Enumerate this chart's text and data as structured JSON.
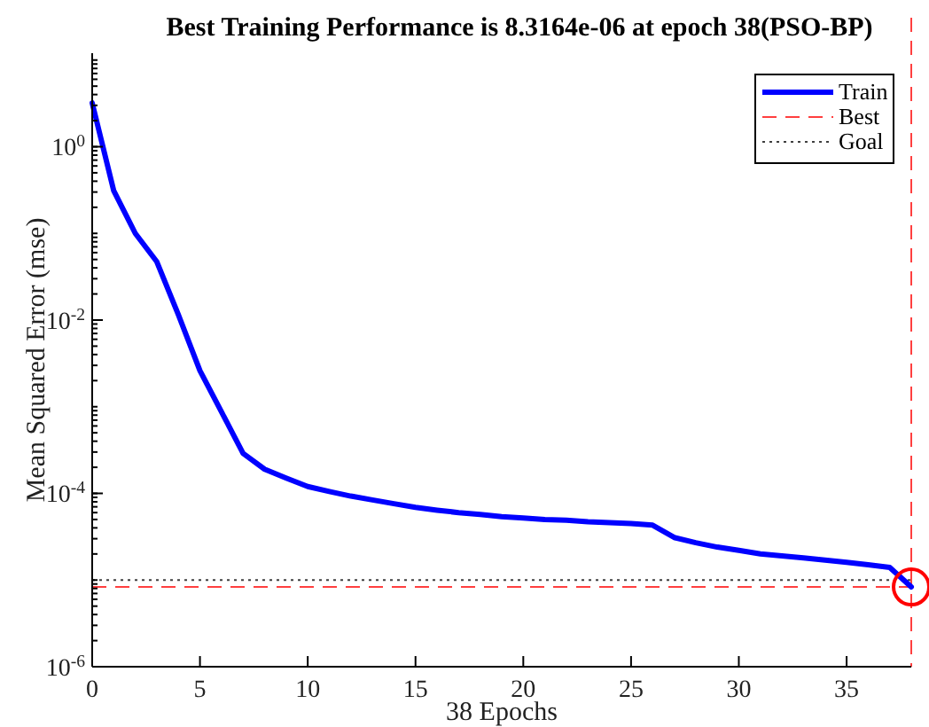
{
  "chart_data": {
    "type": "line",
    "title": "Best Training Performance is 8.3164e-06 at epoch 38(PSO-BP)",
    "xlabel": "38 Epochs",
    "ylabel": "Mean Squared Error  (mse)",
    "x": [
      0,
      1,
      2,
      3,
      4,
      5,
      6,
      7,
      8,
      9,
      10,
      11,
      12,
      13,
      14,
      15,
      16,
      17,
      18,
      19,
      20,
      21,
      22,
      23,
      24,
      25,
      26,
      27,
      28,
      29,
      30,
      31,
      32,
      33,
      34,
      35,
      36,
      37,
      38
    ],
    "series": [
      {
        "name": "Train",
        "color": "#0000ff",
        "values": [
          3.2,
          0.31,
          0.1,
          0.047,
          0.0115,
          0.0026,
          0.00087,
          0.00029,
          0.00019,
          0.00015,
          0.00012,
          0.000105,
          9.3e-05,
          8.4e-05,
          7.6e-05,
          6.9e-05,
          6.4e-05,
          6e-05,
          5.7e-05,
          5.4e-05,
          5.2e-05,
          5e-05,
          4.9e-05,
          4.7e-05,
          4.6e-05,
          4.5e-05,
          4.3e-05,
          3.1e-05,
          2.7e-05,
          2.4e-05,
          2.2e-05,
          2e-05,
          1.9e-05,
          1.8e-05,
          1.7e-05,
          1.6e-05,
          1.5e-05,
          1.4e-05,
          8.3164e-06
        ]
      }
    ],
    "xlim": [
      0,
      38
    ],
    "xticks": [
      0,
      5,
      10,
      15,
      20,
      25,
      30,
      35
    ],
    "ylim": [
      1e-06,
      12
    ],
    "yticks": [
      {
        "value": 1e-06,
        "label": "10$^{-6}$"
      },
      {
        "value": 0.0001,
        "label": "10$^{-4}$"
      },
      {
        "value": 0.01,
        "label": "10$^{-2}$"
      },
      {
        "value": 1,
        "label": "10$^{0}$"
      }
    ],
    "log": "y",
    "grid": false,
    "legend": "top right",
    "line_style": "solid",
    "marker": "none",
    "ref_lines": [
      {
        "axis": "x",
        "value": 38,
        "label": null,
        "color": "#ff0000",
        "line_style": "dashed"
      },
      {
        "axis": "y",
        "value": 8.3164e-06,
        "label": "Best",
        "color": "#ff0000",
        "line_style": "dashed"
      },
      {
        "axis": "y",
        "value": 1e-05,
        "label": "Goal",
        "color": "#000000",
        "line_style": "dotted"
      }
    ]
  }
}
